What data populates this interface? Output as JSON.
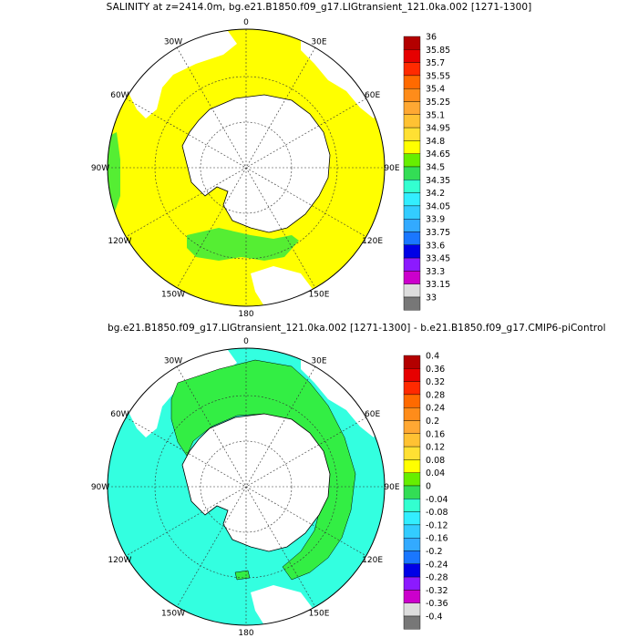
{
  "figure_top": {
    "title": "SALINITY at z=2414.0m, bg.e21.B1850.f09_g17.LIGtransient_121.0ka.002 [1271-1300]",
    "lon_labels": [
      "0",
      "30E",
      "60E",
      "90E",
      "120E",
      "150E",
      "180",
      "150W",
      "120W",
      "90W",
      "60W",
      "30W"
    ],
    "colorbar": {
      "labels": [
        "36",
        "35.85",
        "35.7",
        "35.55",
        "35.4",
        "35.25",
        "35.1",
        "34.95",
        "34.8",
        "34.65",
        "34.5",
        "34.35",
        "34.2",
        "34.05",
        "33.9",
        "33.75",
        "33.6",
        "33.45",
        "33.3",
        "33.15",
        "33"
      ],
      "colors": [
        "#b30000",
        "#e60000",
        "#ff2a00",
        "#ff6a00",
        "#ff8c1a",
        "#ffa833",
        "#ffc233",
        "#ffe033",
        "#ffff00",
        "#66ee00",
        "#33dd55",
        "#33ffd0",
        "#33eeff",
        "#33ccff",
        "#33aaff",
        "#1a77ff",
        "#0000e6",
        "#8c1aff",
        "#cc00cc",
        "#dddddd",
        "#777777"
      ]
    },
    "dominant_color": "#ffff00",
    "anomaly_color": "#55ee33"
  },
  "figure_bottom": {
    "title": "bg.e21.B1850.f09_g17.LIGtransient_121.0ka.002 [1271-1300] - b.e21.B1850.f09_g17.CMIP6-piControl",
    "lon_labels": [
      "0",
      "30E",
      "60E",
      "90E",
      "120E",
      "150E",
      "180",
      "150W",
      "120W",
      "90W",
      "60W",
      "30W"
    ],
    "colorbar": {
      "labels": [
        "0.4",
        "0.36",
        "0.32",
        "0.28",
        "0.24",
        "0.2",
        "0.16",
        "0.12",
        "0.08",
        "0.04",
        "0",
        "-0.04",
        "-0.08",
        "-0.12",
        "-0.16",
        "-0.2",
        "-0.24",
        "-0.28",
        "-0.32",
        "-0.36",
        "-0.4"
      ],
      "colors": [
        "#b30000",
        "#e60000",
        "#ff2a00",
        "#ff6a00",
        "#ff8c1a",
        "#ffa833",
        "#ffc233",
        "#ffe033",
        "#ffff00",
        "#66ee00",
        "#33dd55",
        "#33ffd0",
        "#33eeff",
        "#33ccff",
        "#33aaff",
        "#1a77ff",
        "#0000e6",
        "#8c1aff",
        "#cc00cc",
        "#dddddd",
        "#777777"
      ]
    },
    "dominant_color": "#33ffe0",
    "anomaly_color": "#33ee44"
  }
}
